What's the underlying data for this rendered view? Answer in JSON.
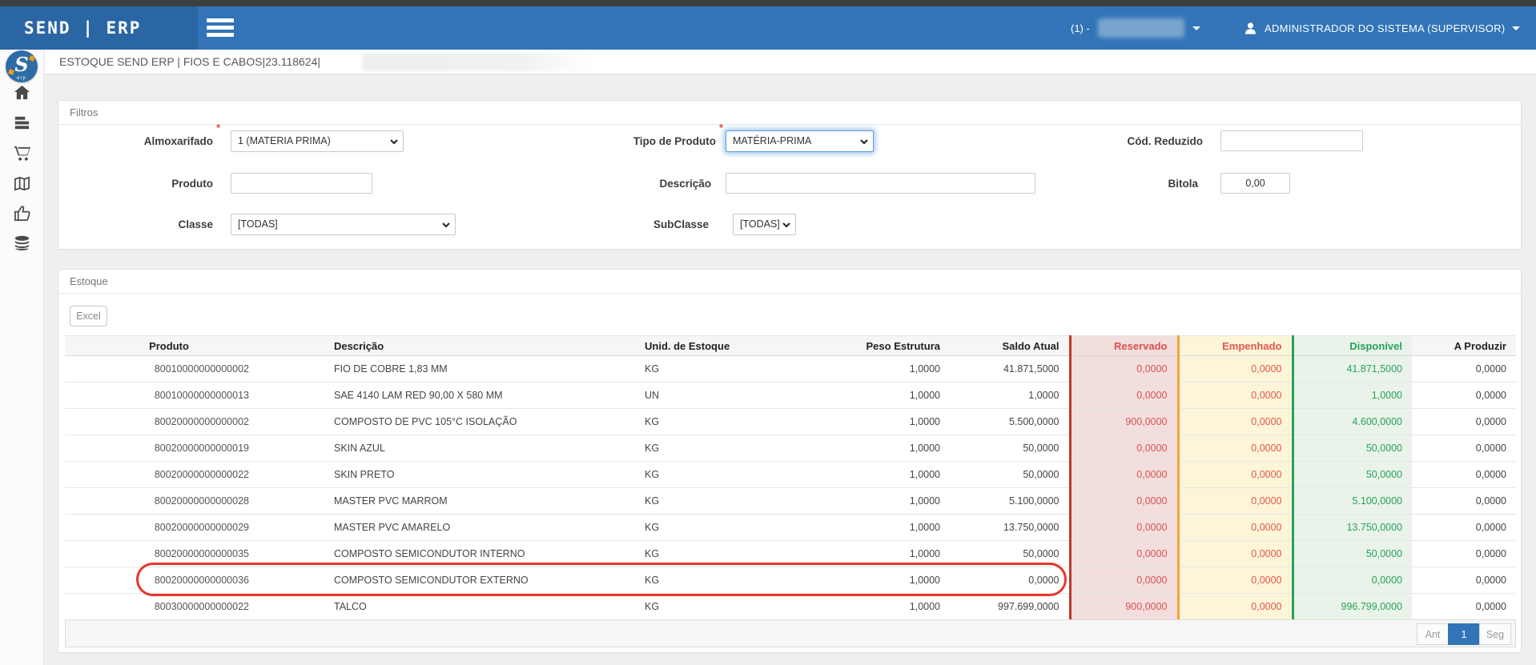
{
  "header": {
    "brand": "SEND | ERP",
    "company_prefix": "(1) -",
    "user_name": "ADMINISTRADOR DO SISTEMA (SUPERVISOR)"
  },
  "breadcrumb": {
    "text": "ESTOQUE SEND ERP | FIOS E CABOS|23.118624|"
  },
  "filters": {
    "title": "Filtros",
    "almoxarifado": {
      "label": "Almoxarifado",
      "required": "*",
      "value": "1 (MATERIA PRIMA)"
    },
    "tipo_produto": {
      "label": "Tipo de Produto",
      "required": "*",
      "value": "MATÉRIA-PRIMA"
    },
    "cod_reduzido": {
      "label": "Cód. Reduzido",
      "value": ""
    },
    "produto": {
      "label": "Produto",
      "value": ""
    },
    "descricao": {
      "label": "Descrição",
      "value": ""
    },
    "bitola": {
      "label": "Bitola",
      "value": "0,00"
    },
    "classe": {
      "label": "Classe",
      "value": "[TODAS]"
    },
    "subclasse": {
      "label": "SubClasse",
      "value": "[TODAS]"
    }
  },
  "estoque": {
    "title": "Estoque",
    "excel_button": "Excel",
    "columns": [
      "Produto",
      "Descrição",
      "Unid. de Estoque",
      "Peso Estrutura",
      "Saldo Atual",
      "Reservado",
      "Empenhado",
      "Disponível",
      "A Produzir"
    ],
    "rows": [
      [
        "80010000000000002",
        "FIO DE COBRE 1,83 MM",
        "KG",
        "1,0000",
        "41.871,5000",
        "0,0000",
        "0,0000",
        "41.871,5000",
        "0,0000"
      ],
      [
        "80010000000000013",
        "SAE 4140 LAM RED 90,00 X 580 MM",
        "UN",
        "1,0000",
        "1,0000",
        "0,0000",
        "0,0000",
        "1,0000",
        "0,0000"
      ],
      [
        "80020000000000002",
        "COMPOSTO DE PVC 105°C ISOLAÇÃO",
        "KG",
        "1,0000",
        "5.500,0000",
        "900,0000",
        "0,0000",
        "4.600,0000",
        "0,0000"
      ],
      [
        "80020000000000019",
        "SKIN AZUL",
        "KG",
        "1,0000",
        "50,0000",
        "0,0000",
        "0,0000",
        "50,0000",
        "0,0000"
      ],
      [
        "80020000000000022",
        "SKIN PRETO",
        "KG",
        "1,0000",
        "50,0000",
        "0,0000",
        "0,0000",
        "50,0000",
        "0,0000"
      ],
      [
        "80020000000000028",
        "MASTER PVC MARROM",
        "KG",
        "1,0000",
        "5.100,0000",
        "0,0000",
        "0,0000",
        "5.100,0000",
        "0,0000"
      ],
      [
        "80020000000000029",
        "MASTER PVC AMARELO",
        "KG",
        "1,0000",
        "13.750,0000",
        "0,0000",
        "0,0000",
        "13.750,0000",
        "0,0000"
      ],
      [
        "80020000000000035",
        "COMPOSTO SEMICONDUTOR INTERNO",
        "KG",
        "1,0000",
        "50,0000",
        "0,0000",
        "0,0000",
        "50,0000",
        "0,0000"
      ],
      [
        "80020000000000036",
        "COMPOSTO SEMICONDUTOR EXTERNO",
        "KG",
        "1,0000",
        "0,0000",
        "0,0000",
        "0,0000",
        "0,0000",
        "0,0000"
      ],
      [
        "80030000000000022",
        "TALCO",
        "KG",
        "1,0000",
        "997.699,0000",
        "900,0000",
        "0,0000",
        "996.799,0000",
        "0,0000"
      ]
    ],
    "highlighted_row_index": 8,
    "pagination": {
      "prev": "Ant",
      "page": "1",
      "next": "Seg"
    }
  },
  "colors": {
    "header_blue": "#3274b7",
    "brand_blue": "#2a66a4",
    "reserved_text": "#d9534f",
    "reserved_bg": "#f3dede",
    "reserved_border": "#c0392b",
    "pledged_text": "#e2574c",
    "pledged_bg": "#fcf5d8",
    "pledged_border": "#f2a33c",
    "available_text": "#28a15b",
    "available_bg": "#e9f3e9",
    "available_border": "#28a05a",
    "highlight_red": "#e8352c"
  }
}
